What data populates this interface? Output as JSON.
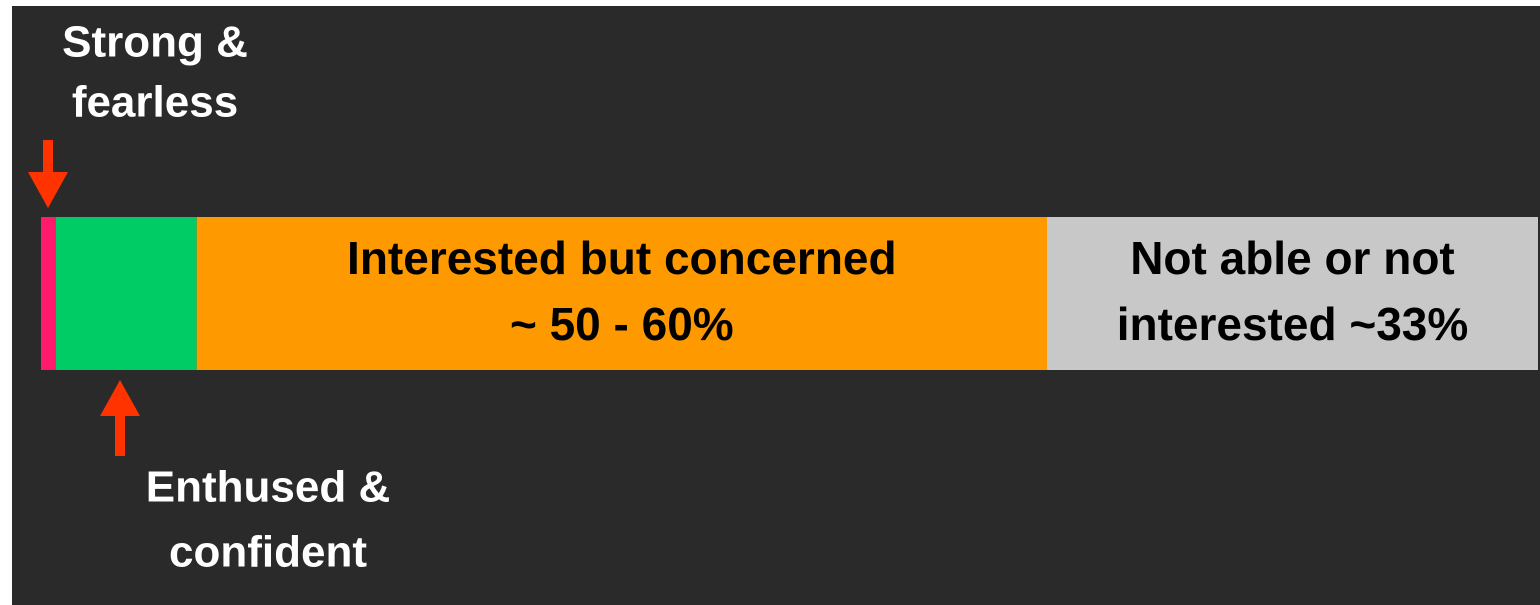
{
  "chart_data": {
    "type": "stacked-bar",
    "series": [
      {
        "name": [
          "Strong &",
          "fearless"
        ],
        "color": "#ff1a6e",
        "values": [
          1
        ]
      },
      {
        "name": [
          "Enthused &",
          "confident"
        ],
        "color": "#00cc66",
        "values": [
          9.4
        ]
      },
      {
        "name": [
          "Interested but concerned",
          "~ 50 - 60%"
        ],
        "color": "#ff9900",
        "values": [
          56.8
        ]
      },
      {
        "name": [
          "Not able or not",
          "interested ~33%"
        ],
        "color": "#c8c8c8",
        "values": [
          32.8
        ]
      }
    ]
  }
}
